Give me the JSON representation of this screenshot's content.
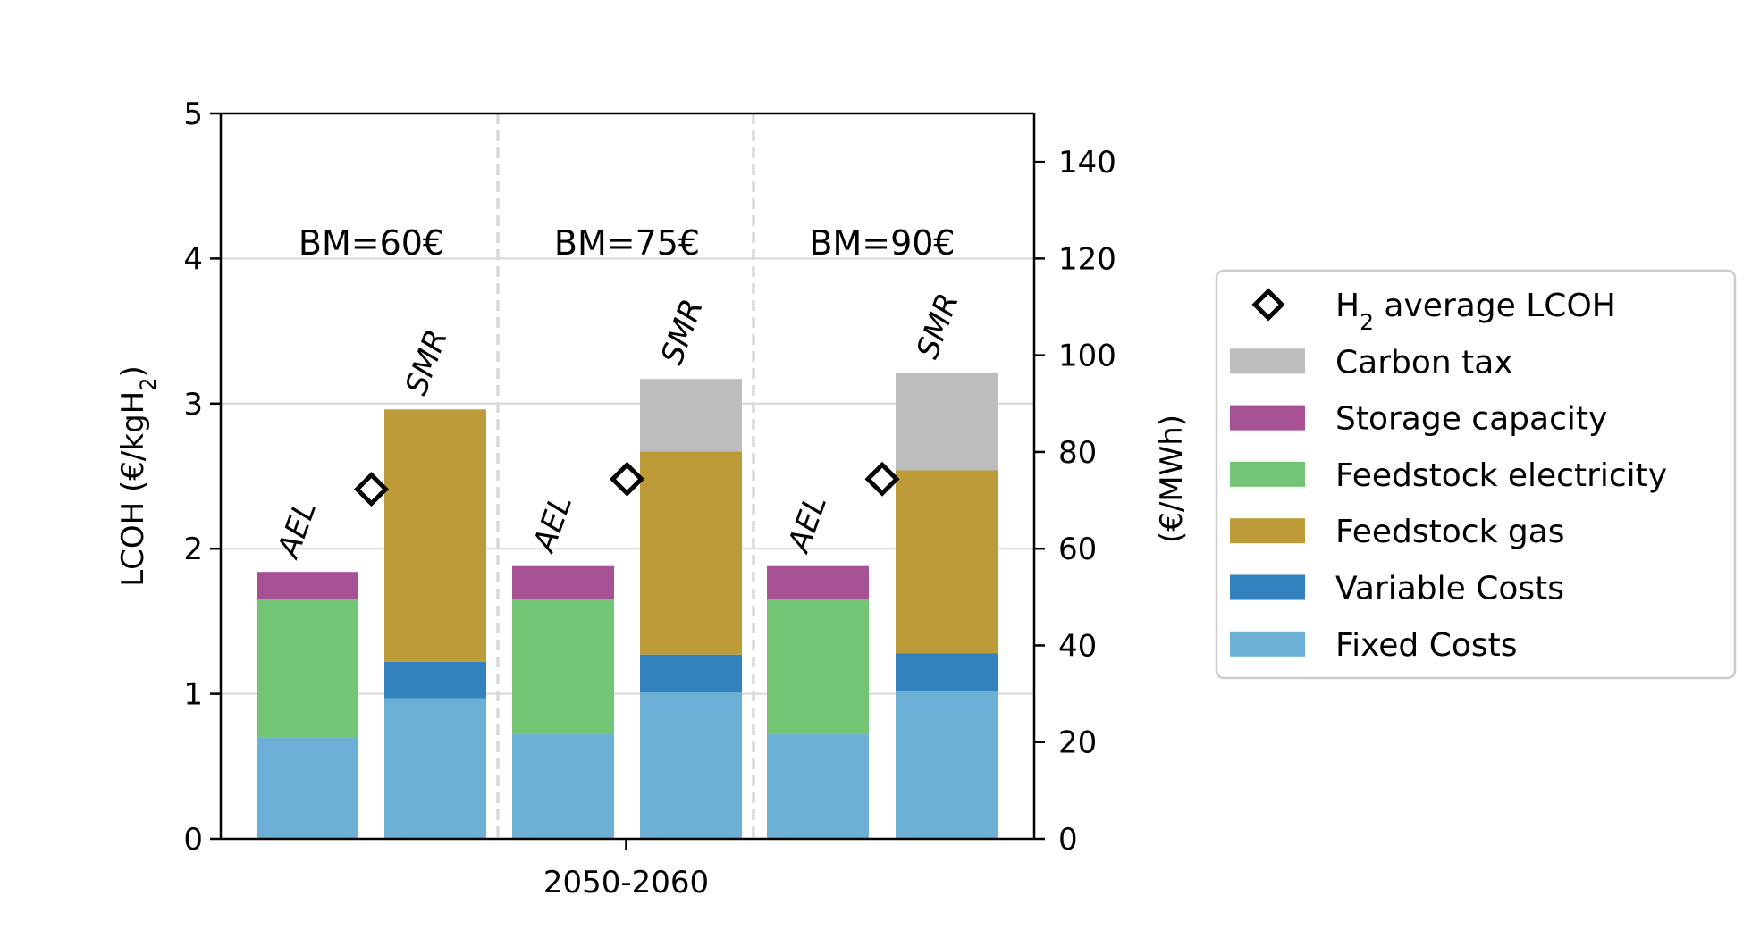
{
  "chart_data": {
    "type": "bar",
    "stacked": true,
    "xlabel": "2050-2060",
    "ylabel": "LCOH (€/kgH",
    "ylabel_sub": "2",
    "ylabel_close": ")",
    "ylim": [
      0,
      5
    ],
    "yticks": [
      0,
      1,
      2,
      3,
      4,
      5
    ],
    "ylabel_right": "(€/MWh)",
    "ylim_right": [
      0,
      150
    ],
    "yticks_right": [
      0,
      20,
      40,
      60,
      80,
      100,
      120,
      140
    ],
    "grid": "horizontal",
    "legend_position": "right",
    "groups": [
      {
        "label": "BM=60€",
        "bars": [
          {
            "name": "AEL",
            "Fixed Costs": 0.7,
            "Variable Costs": 0.0,
            "Feedstock gas": 0.0,
            "Feedstock electricity": 0.95,
            "Storage capacity": 0.19,
            "Carbon tax": 0.0
          },
          {
            "name": "SMR",
            "Fixed Costs": 0.97,
            "Variable Costs": 0.25,
            "Feedstock gas": 1.74,
            "Feedstock electricity": 0.0,
            "Storage capacity": 0.0,
            "Carbon tax": 0.0
          }
        ],
        "average_lcoh": 2.41
      },
      {
        "label": "BM=75€",
        "bars": [
          {
            "name": "AEL",
            "Fixed Costs": 0.72,
            "Variable Costs": 0.0,
            "Feedstock gas": 0.0,
            "Feedstock electricity": 0.93,
            "Storage capacity": 0.23,
            "Carbon tax": 0.0
          },
          {
            "name": "SMR",
            "Fixed Costs": 1.01,
            "Variable Costs": 0.26,
            "Feedstock gas": 1.4,
            "Feedstock electricity": 0.0,
            "Storage capacity": 0.0,
            "Carbon tax": 0.5
          }
        ],
        "average_lcoh": 2.48
      },
      {
        "label": "BM=90€",
        "bars": [
          {
            "name": "AEL",
            "Fixed Costs": 0.72,
            "Variable Costs": 0.0,
            "Feedstock gas": 0.0,
            "Feedstock electricity": 0.93,
            "Storage capacity": 0.23,
            "Carbon tax": 0.0
          },
          {
            "name": "SMR",
            "Fixed Costs": 1.02,
            "Variable Costs": 0.26,
            "Feedstock gas": 1.26,
            "Feedstock electricity": 0.0,
            "Storage capacity": 0.0,
            "Carbon tax": 0.67
          }
        ],
        "average_lcoh": 2.48
      }
    ],
    "stack_order": [
      "Fixed Costs",
      "Variable Costs",
      "Feedstock gas",
      "Feedstock electricity",
      "Storage capacity",
      "Carbon tax"
    ],
    "colors": {
      "Fixed Costs": "#6baed6",
      "Variable Costs": "#3182bd",
      "Feedstock gas": "#bd9b38",
      "Feedstock electricity": "#74c476",
      "Storage capacity": "#a65194",
      "Carbon tax": "#bdbdbd"
    },
    "legend": [
      {
        "label": "H",
        "sub": "2",
        "label_rest": " average LCOH",
        "marker": "diamond"
      },
      {
        "label": "Carbon tax",
        "key": "Carbon tax"
      },
      {
        "label": "Storage capacity",
        "key": "Storage capacity"
      },
      {
        "label": "Feedstock electricity",
        "key": "Feedstock electricity"
      },
      {
        "label": "Feedstock gas",
        "key": "Feedstock gas"
      },
      {
        "label": "Variable Costs",
        "key": "Variable Costs"
      },
      {
        "label": "Fixed Costs",
        "key": "Fixed Costs"
      }
    ]
  }
}
